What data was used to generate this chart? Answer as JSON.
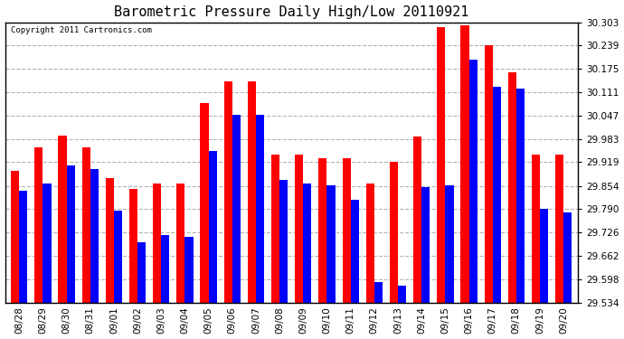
{
  "title": "Barometric Pressure Daily High/Low 20110921",
  "copyright": "Copyright 2011 Cartronics.com",
  "dates": [
    "08/28",
    "08/29",
    "08/30",
    "08/31",
    "09/01",
    "09/02",
    "09/03",
    "09/04",
    "09/05",
    "09/06",
    "09/07",
    "09/08",
    "09/09",
    "09/10",
    "09/11",
    "09/12",
    "09/13",
    "09/14",
    "09/15",
    "09/16",
    "09/17",
    "09/18",
    "09/19",
    "09/20"
  ],
  "highs": [
    29.895,
    29.96,
    29.993,
    29.96,
    29.875,
    29.845,
    29.86,
    29.86,
    30.08,
    30.14,
    30.14,
    29.94,
    29.94,
    29.93,
    29.93,
    29.86,
    29.92,
    29.99,
    30.29,
    30.295,
    30.24,
    30.165,
    29.94,
    29.94
  ],
  "lows": [
    29.84,
    29.86,
    29.91,
    29.9,
    29.785,
    29.7,
    29.72,
    29.715,
    29.95,
    30.05,
    30.05,
    29.87,
    29.86,
    29.855,
    29.815,
    29.59,
    29.58,
    29.85,
    29.855,
    30.2,
    30.125,
    30.12,
    29.79,
    29.78
  ],
  "bar_width": 0.35,
  "high_color": "#ff0000",
  "low_color": "#0000ff",
  "background_color": "#ffffff",
  "grid_color": "#aaaaaa",
  "ylim_min": 29.534,
  "ylim_max": 30.303,
  "yticks": [
    29.534,
    29.598,
    29.662,
    29.726,
    29.79,
    29.854,
    29.919,
    29.983,
    30.047,
    30.111,
    30.175,
    30.239,
    30.303
  ]
}
